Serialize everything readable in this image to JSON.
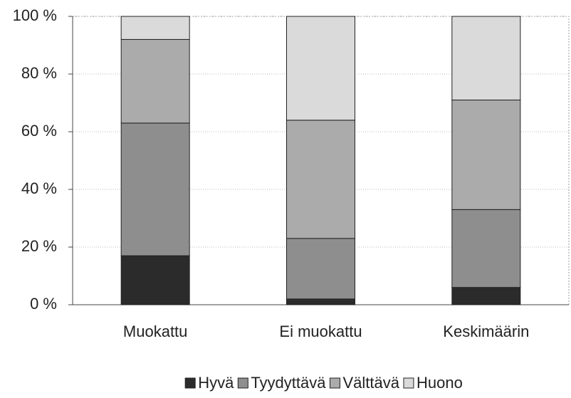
{
  "chart_data": {
    "type": "stacked_bar",
    "categories": [
      "Muokattu",
      "Ei muokattu",
      "Keskimäärin"
    ],
    "series": [
      {
        "name": "Hyvä",
        "color": "#2b2b2b",
        "values": [
          17,
          2,
          6
        ]
      },
      {
        "name": "Tyydyttävä",
        "color": "#8e8e8e",
        "values": [
          46,
          21,
          27
        ]
      },
      {
        "name": "Välttävä",
        "color": "#ababab",
        "values": [
          29,
          41,
          38
        ]
      },
      {
        "name": "Huono",
        "color": "#dadada",
        "values": [
          8,
          36,
          29
        ]
      }
    ],
    "ylim": [
      0,
      100
    ],
    "yticks": [
      {
        "value": 0,
        "label": "0 %"
      },
      {
        "value": 20,
        "label": "20 %"
      },
      {
        "value": 40,
        "label": "40 %"
      },
      {
        "value": 60,
        "label": "60 %"
      },
      {
        "value": 80,
        "label": "80 %"
      },
      {
        "value": 100,
        "label": "100 %"
      }
    ],
    "grid": true,
    "legend": "bottom"
  }
}
